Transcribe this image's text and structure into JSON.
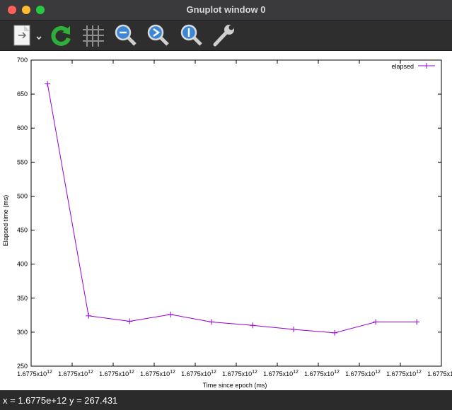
{
  "window": {
    "title": "Gnuplot window 0"
  },
  "toolbar": {
    "buttons": [
      {
        "name": "export-menu-button",
        "icon": "document-export-icon"
      },
      {
        "name": "replot-button",
        "icon": "refresh-icon"
      },
      {
        "name": "grid-toggle-button",
        "icon": "grid-icon"
      },
      {
        "name": "zoom-previous-button",
        "icon": "zoom-previous-icon"
      },
      {
        "name": "zoom-next-button",
        "icon": "zoom-next-icon"
      },
      {
        "name": "autoscale-button",
        "icon": "zoom-autoscale-icon"
      },
      {
        "name": "settings-button",
        "icon": "wrench-icon"
      }
    ]
  },
  "chart_data": {
    "type": "line",
    "title": "",
    "xlabel": "Time since epoch (ms)",
    "ylabel": "Elapsed time (ms)",
    "ylim": [
      250,
      700
    ],
    "yticks": [
      "250",
      "300",
      "350",
      "400",
      "450",
      "500",
      "550",
      "600",
      "650",
      "700"
    ],
    "xtick_count": 11,
    "xtick_mantissa": "1.6775x10",
    "xtick_exponent": "12",
    "grid": false,
    "legend": "top-right",
    "color": "#9400d3",
    "series": [
      {
        "name": "elapsed",
        "x_index": [
          0.4,
          1.4,
          2.4,
          3.4,
          4.4,
          5.4,
          6.4,
          7.4,
          8.4,
          9.4
        ],
        "values": [
          665,
          324,
          316,
          326,
          315,
          310,
          304,
          299,
          315,
          315
        ]
      }
    ]
  },
  "status": {
    "text": "x = 1.6775e+12 y = 267.431"
  }
}
